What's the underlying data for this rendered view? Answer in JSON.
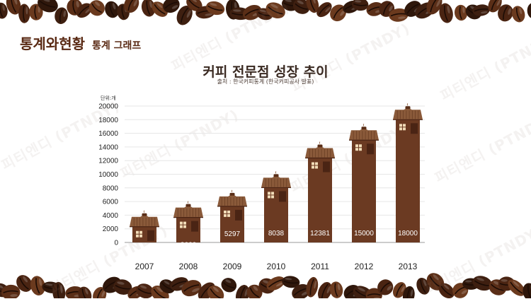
{
  "header": {
    "brand_title": "통계와현황",
    "brand_subtitle": "통계 그래프"
  },
  "watermark_text": "피티엔디 (PTNDY)",
  "chart_data": {
    "type": "bar",
    "title": "커피 전문점 성장 추이",
    "subtitle": "출처 : 한국커피통계 (한국커피공사 발표)",
    "unit_label": "단위:개",
    "categories": [
      "2007",
      "2008",
      "2009",
      "2010",
      "2011",
      "2012",
      "2013"
    ],
    "values": [
      2305,
      3666,
      5297,
      8038,
      12381,
      15000,
      18000
    ],
    "ylim": [
      0,
      20000
    ],
    "yticks": [
      0,
      2000,
      4000,
      6000,
      8000,
      10000,
      12000,
      14000,
      16000,
      18000,
      20000
    ],
    "grid": true,
    "colors": {
      "bar": "#6b3a22",
      "roof": "#8a5a3a",
      "window": "#f1dcb8",
      "door": "#4a2414",
      "label": "#ffffff",
      "grid": "#e6e6e6"
    }
  }
}
